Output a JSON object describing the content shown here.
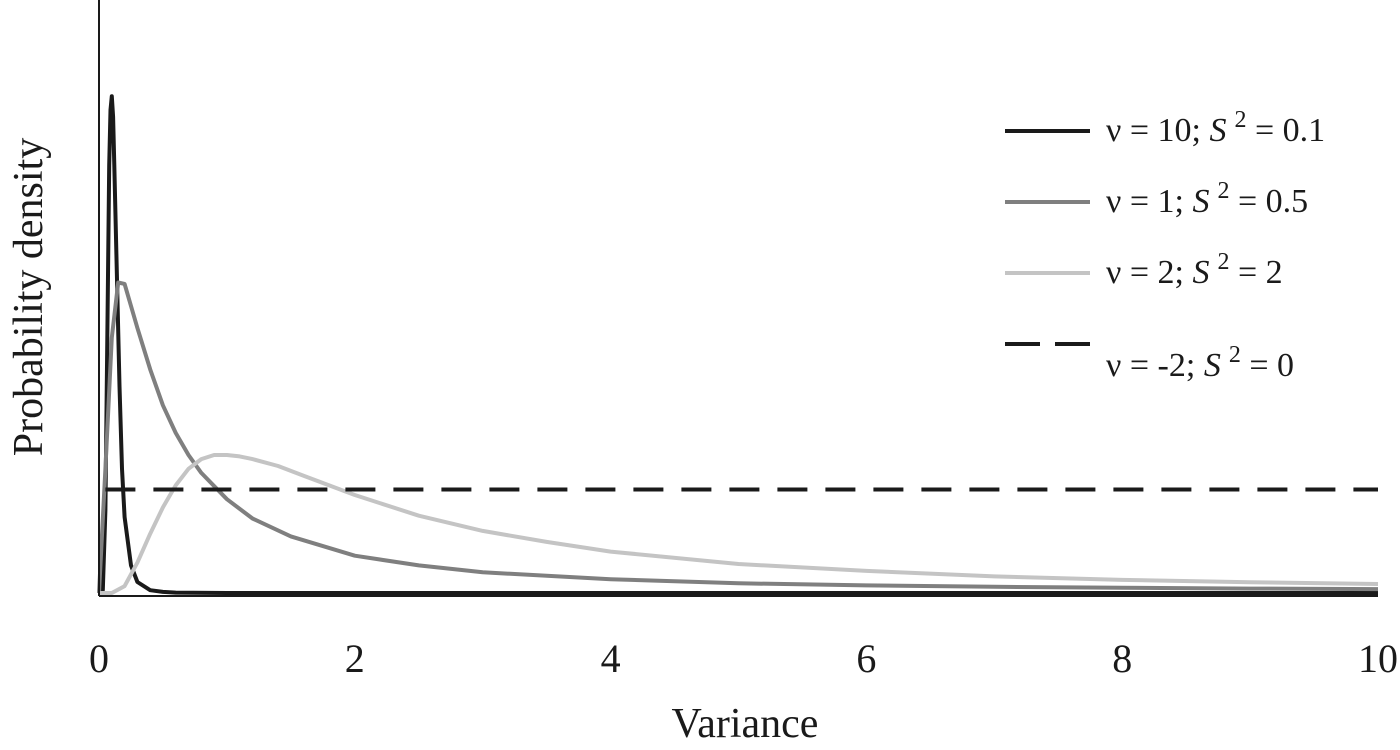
{
  "chart_data": {
    "type": "line",
    "xlabel": "Variance",
    "ylabel": "Probability density",
    "xlim": [
      0,
      10
    ],
    "x_ticks": [
      "0",
      "2",
      "4",
      "6",
      "8",
      "10"
    ],
    "y_ticks_shown": false,
    "grid": false,
    "legend_position": "top-right",
    "series": [
      {
        "name": "ν = 10; S² = 0.1",
        "legend": {
          "prefix": "ν = 10; ",
          "s": "S",
          "sup": "2",
          "suffix": " = 0.1"
        },
        "color": "#1a1a1a",
        "dash": "solid",
        "x": [
          0,
          0.03,
          0.05,
          0.07,
          0.08,
          0.09,
          0.1,
          0.11,
          0.12,
          0.14,
          0.16,
          0.18,
          0.2,
          0.25,
          0.3,
          0.4,
          0.5,
          0.6,
          1.0,
          10.0
        ],
        "y": [
          0,
          0.02,
          0.6,
          2.3,
          3.1,
          3.5,
          3.6,
          3.45,
          3.1,
          2.3,
          1.5,
          0.9,
          0.55,
          0.2,
          0.08,
          0.02,
          0.008,
          0.003,
          0,
          0
        ]
      },
      {
        "name": "ν = 1; S² = 0.5",
        "legend": {
          "prefix": "ν = 1; ",
          "s": "S",
          "sup": "2",
          "suffix": " = 0.5"
        },
        "color": "#7f7f7f",
        "dash": "solid",
        "x": [
          0,
          0.05,
          0.1,
          0.15,
          0.2,
          0.25,
          0.3,
          0.4,
          0.5,
          0.6,
          0.7,
          0.8,
          1.0,
          1.2,
          1.5,
          2.0,
          2.5,
          3.0,
          4.0,
          5.0,
          6.0,
          7.0,
          8.0,
          9.0,
          10.0
        ],
        "y": [
          0,
          0.9,
          1.85,
          2.25,
          2.24,
          2.08,
          1.92,
          1.62,
          1.36,
          1.16,
          1.0,
          0.87,
          0.68,
          0.54,
          0.41,
          0.27,
          0.2,
          0.15,
          0.1,
          0.07,
          0.055,
          0.045,
          0.038,
          0.032,
          0.028
        ]
      },
      {
        "name": "ν = 2; S² = 2",
        "legend": {
          "prefix": "ν = 2; ",
          "s": "S",
          "sup": "2",
          "suffix": " = 2"
        },
        "color": "#c4c4c4",
        "dash": "solid",
        "x": [
          0,
          0.1,
          0.2,
          0.3,
          0.4,
          0.5,
          0.6,
          0.7,
          0.8,
          0.9,
          1.0,
          1.1,
          1.2,
          1.4,
          1.6,
          1.8,
          2.0,
          2.5,
          3.0,
          3.5,
          4.0,
          5.0,
          6.0,
          7.0,
          8.0,
          9.0,
          10.0
        ],
        "y": [
          0,
          0.0,
          0.05,
          0.22,
          0.43,
          0.62,
          0.78,
          0.9,
          0.97,
          1.0,
          1.0,
          0.99,
          0.97,
          0.92,
          0.85,
          0.78,
          0.71,
          0.56,
          0.45,
          0.37,
          0.3,
          0.21,
          0.16,
          0.12,
          0.095,
          0.078,
          0.065
        ]
      },
      {
        "name": "ν = -2; S² = 0",
        "legend": {
          "prefix": "ν = -2; ",
          "s": "S",
          "sup": "2",
          "suffix": " = 0"
        },
        "color": "#1a1a1a",
        "dash": "dashed",
        "x": [
          0.05,
          10.0
        ],
        "y": [
          0.75,
          0.75
        ]
      }
    ]
  }
}
